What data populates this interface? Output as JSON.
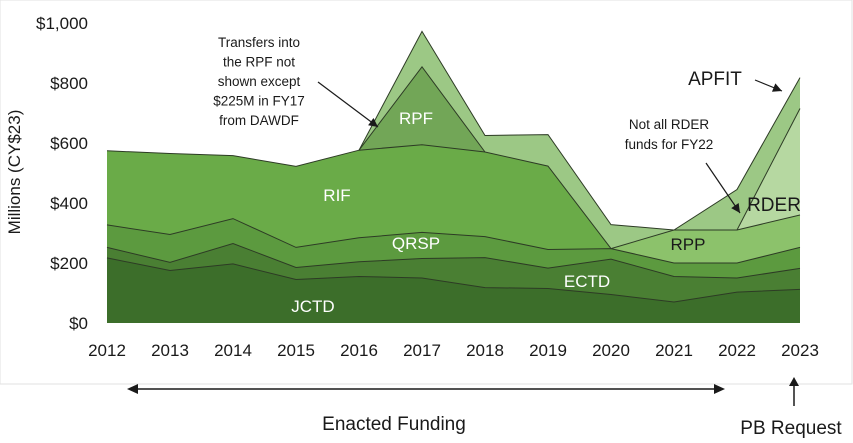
{
  "chart_data": {
    "type": "area",
    "stacked": true,
    "title": "",
    "xlabel": "",
    "ylabel": "Millions (CY$23)",
    "ylim": [
      0,
      1000
    ],
    "y_ticks": [
      "$0",
      "$200",
      "$400",
      "$600",
      "$800",
      "$1,000"
    ],
    "y_tick_values": [
      0,
      200,
      400,
      600,
      800,
      1000
    ],
    "x": [
      "2012",
      "2013",
      "2014",
      "2015",
      "2016",
      "2017",
      "2018",
      "2019",
      "2020",
      "2021",
      "2022",
      "2023"
    ],
    "grid": false,
    "legend": "none (series labeled inline)",
    "series": [
      {
        "name": "JCTD",
        "color": "#3c6e2a",
        "label_color": "#ffffff",
        "values": [
          217,
          175,
          197,
          145,
          155,
          150,
          118,
          115,
          95,
          70,
          103,
          112
        ]
      },
      {
        "name": "ECTD",
        "color": "#4a7f33",
        "label_color": "#ffffff",
        "values": [
          35,
          27,
          68,
          40,
          49,
          65,
          100,
          68,
          118,
          85,
          47,
          70
        ]
      },
      {
        "name": "QRSP",
        "color": "#5c9a3f",
        "label_color": "#ffffff",
        "values": [
          75,
          93,
          83,
          67,
          80,
          87,
          70,
          62,
          35,
          45,
          50,
          70
        ]
      },
      {
        "name": "RIF",
        "color": "#6aab48",
        "label_color": "#ffffff",
        "values": [
          247,
          270,
          210,
          270,
          292,
          292,
          282,
          278,
          0,
          0,
          0,
          0
        ]
      },
      {
        "name": "RPP",
        "color": "#8cc26b",
        "label_color": "#1a1a1a",
        "values": [
          0,
          0,
          0,
          0,
          0,
          0,
          0,
          0,
          0,
          110,
          110,
          108
        ]
      },
      {
        "name": "RDER",
        "color": "#b6d8a1",
        "label_color": "#1a1a1a",
        "values": [
          0,
          0,
          0,
          0,
          0,
          0,
          0,
          0,
          0,
          0,
          0,
          355
        ]
      },
      {
        "name": "RPF",
        "color": "#72a657",
        "label_color": "#ffffff",
        "values": [
          0,
          0,
          0,
          0,
          0,
          260,
          0,
          0,
          0,
          0,
          0,
          0
        ]
      },
      {
        "name": "APFIT",
        "color": "#9cc885",
        "label_color": "#1a1a1a",
        "values": [
          0,
          0,
          0,
          0,
          0,
          118,
          55,
          105,
          80,
          0,
          135,
          103
        ]
      }
    ],
    "annotations": [
      {
        "id": "rpf_note",
        "lines": [
          "Transfers into",
          "the RPF not",
          "shown except",
          "$225M in FY17",
          "from DAWDF"
        ]
      },
      {
        "id": "rder_note",
        "lines": [
          "Not all RDER",
          "funds for FY22"
        ]
      }
    ],
    "bottom_labels": {
      "enacted": "Enacted Funding",
      "pb": "PB Request"
    }
  }
}
